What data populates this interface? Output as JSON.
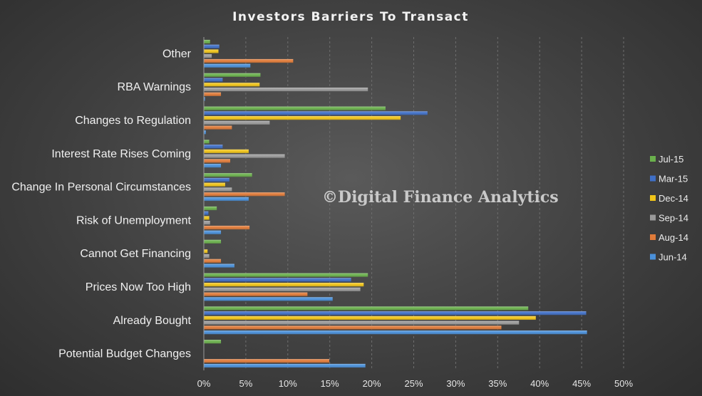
{
  "chart_data": {
    "type": "bar",
    "orientation": "horizontal",
    "title": "Investors Barriers To Transact",
    "watermark": "©Digital Finance Analytics",
    "categories": [
      "Other",
      "RBA Warnings",
      "Changes to Regulation",
      "Interest Rate Rises Coming",
      "Change In Personal Circumstances",
      "Risk of Unemployment",
      "Cannot Get Financing",
      "Prices Now Too High",
      "Already Bought",
      "Potential Budget Changes"
    ],
    "series": [
      {
        "name": "Jul-15",
        "color": "#6ab04c",
        "values": [
          0.7,
          6.7,
          21.6,
          0.6,
          5.7,
          1.5,
          2.0,
          19.5,
          38.6,
          2.0
        ]
      },
      {
        "name": "Mar-15",
        "color": "#3f6fc6",
        "values": [
          1.8,
          2.2,
          26.6,
          2.2,
          3.0,
          0.5,
          0.0,
          17.5,
          45.5,
          0.0
        ]
      },
      {
        "name": "Dec-14",
        "color": "#f0c419",
        "values": [
          1.7,
          6.6,
          23.4,
          5.3,
          2.5,
          0.6,
          0.4,
          19.0,
          39.5,
          0.0
        ]
      },
      {
        "name": "Sep-14",
        "color": "#9a9a9a",
        "values": [
          0.9,
          19.5,
          7.8,
          9.6,
          3.3,
          0.7,
          0.6,
          18.6,
          37.5,
          0.0
        ]
      },
      {
        "name": "Aug-14",
        "color": "#e07b39",
        "values": [
          10.6,
          2.0,
          3.3,
          3.1,
          9.6,
          5.4,
          2.0,
          12.3,
          35.4,
          14.9
        ]
      },
      {
        "name": "Jun-14",
        "color": "#4a90d9",
        "values": [
          5.5,
          0.1,
          0.2,
          2.0,
          5.3,
          2.0,
          3.6,
          15.3,
          45.6,
          19.2
        ]
      }
    ],
    "xlim": [
      0,
      50
    ],
    "x_ticks": [
      "0%",
      "5%",
      "10%",
      "15%",
      "20%",
      "25%",
      "30%",
      "35%",
      "40%",
      "45%",
      "50%"
    ],
    "grid": true,
    "legend_position": "right"
  }
}
